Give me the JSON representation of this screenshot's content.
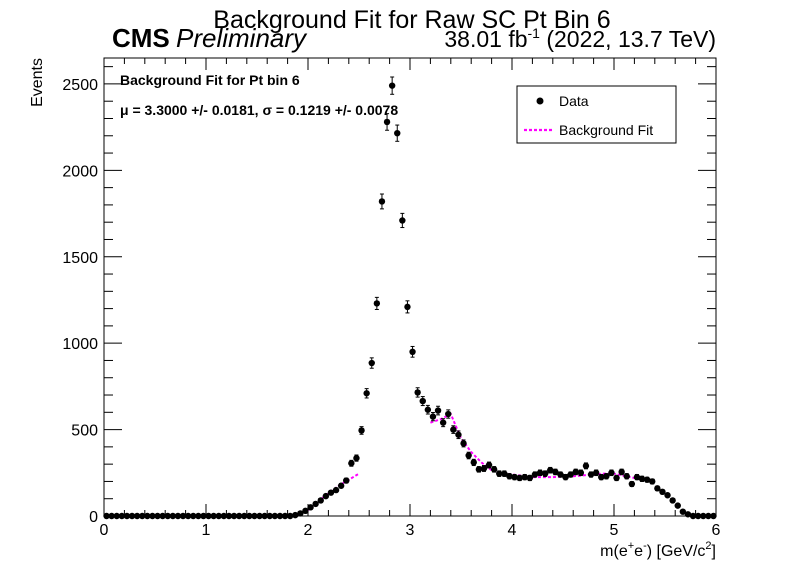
{
  "chart_data": {
    "type": "scatter",
    "title": "Background Fit for Raw SC Pt Bin 6",
    "cms_label": "CMS",
    "cms_sublabel": "Preliminary",
    "lumi_label": {
      "value": "38.01 fb",
      "exponent": "-1",
      "rest": " (2022, 13.7 TeV)"
    },
    "annotations": [
      "Background Fit for Pt bin 6",
      "μ = 3.3000 +/- 0.0181, σ = 0.1219 +/- 0.0078"
    ],
    "xlabel": {
      "base": "m(e",
      "sup1": "+",
      "mid": "e",
      "sup2": "-",
      "end": ") [GeV/c",
      "sup3": "2",
      "close": "]"
    },
    "ylabel": "Events",
    "xlim": [
      0,
      6
    ],
    "ylim": [
      0,
      2650
    ],
    "xticks": [
      0,
      1,
      2,
      3,
      4,
      5,
      6
    ],
    "yticks": [
      0,
      500,
      1000,
      1500,
      2000,
      2500
    ],
    "grid": false,
    "legend_position": "top-right",
    "series": [
      {
        "name": "Data",
        "style": "markers",
        "color": "#000000",
        "x": [
          0.025,
          0.075,
          0.125,
          0.175,
          0.225,
          0.275,
          0.325,
          0.375,
          0.425,
          0.475,
          0.525,
          0.575,
          0.625,
          0.675,
          0.725,
          0.775,
          0.825,
          0.875,
          0.925,
          0.975,
          1.025,
          1.075,
          1.125,
          1.175,
          1.225,
          1.275,
          1.325,
          1.375,
          1.425,
          1.475,
          1.525,
          1.575,
          1.625,
          1.675,
          1.725,
          1.775,
          1.825,
          1.875,
          1.925,
          1.975,
          2.025,
          2.075,
          2.125,
          2.175,
          2.225,
          2.275,
          2.325,
          2.375,
          2.425,
          2.475,
          2.525,
          2.575,
          2.625,
          2.675,
          2.725,
          2.775,
          2.825,
          2.875,
          2.925,
          2.975,
          3.025,
          3.075,
          3.125,
          3.175,
          3.225,
          3.275,
          3.325,
          3.375,
          3.425,
          3.475,
          3.525,
          3.575,
          3.625,
          3.675,
          3.725,
          3.775,
          3.825,
          3.875,
          3.925,
          3.975,
          4.025,
          4.075,
          4.125,
          4.175,
          4.225,
          4.275,
          4.325,
          4.375,
          4.425,
          4.475,
          4.525,
          4.575,
          4.625,
          4.675,
          4.725,
          4.775,
          4.825,
          4.875,
          4.925,
          4.975,
          5.025,
          5.075,
          5.125,
          5.175,
          5.225,
          5.275,
          5.325,
          5.375,
          5.425,
          5.475,
          5.525,
          5.575,
          5.625,
          5.675,
          5.725,
          5.775,
          5.825,
          5.875,
          5.925,
          5.975
        ],
        "y": [
          0,
          0,
          0,
          0,
          0,
          0,
          0,
          0,
          0,
          0,
          0,
          0,
          0,
          0,
          0,
          0,
          0,
          0,
          0,
          0,
          0,
          0,
          0,
          0,
          0,
          0,
          0,
          0,
          0,
          0,
          0,
          0,
          0,
          0,
          0,
          0,
          0,
          5,
          15,
          30,
          50,
          70,
          90,
          115,
          135,
          150,
          175,
          205,
          305,
          335,
          495,
          710,
          885,
          1230,
          1820,
          2280,
          2490,
          2215,
          1710,
          1210,
          950,
          715,
          665,
          615,
          575,
          610,
          540,
          590,
          500,
          470,
          420,
          350,
          310,
          270,
          275,
          295,
          270,
          245,
          245,
          230,
          225,
          220,
          225,
          220,
          240,
          250,
          245,
          265,
          255,
          240,
          225,
          240,
          255,
          250,
          290,
          240,
          250,
          225,
          230,
          250,
          220,
          255,
          230,
          185,
          225,
          215,
          210,
          200,
          160,
          140,
          120,
          90,
          60,
          25,
          10,
          0,
          0,
          0,
          0,
          0
        ],
        "yerr": [
          0,
          0,
          0,
          0,
          0,
          0,
          0,
          0,
          0,
          0,
          0,
          0,
          0,
          0,
          0,
          0,
          0,
          0,
          0,
          0,
          0,
          0,
          0,
          0,
          0,
          0,
          0,
          0,
          0,
          0,
          0,
          0,
          0,
          0,
          0,
          0,
          0,
          2,
          4,
          5,
          7,
          8,
          9,
          11,
          12,
          12,
          13,
          14,
          17,
          18,
          22,
          27,
          30,
          35,
          43,
          48,
          50,
          47,
          41,
          35,
          31,
          27,
          26,
          25,
          24,
          25,
          23,
          24,
          22,
          22,
          20,
          19,
          18,
          16,
          17,
          17,
          16,
          16,
          16,
          15,
          15,
          15,
          15,
          15,
          15,
          16,
          16,
          16,
          16,
          15,
          15,
          15,
          16,
          16,
          17,
          15,
          16,
          15,
          15,
          16,
          15,
          16,
          15,
          14,
          15,
          15,
          14,
          14,
          13,
          12,
          11,
          9,
          8,
          5,
          3,
          0,
          0,
          0,
          0,
          0
        ]
      },
      {
        "name": "Background Fit",
        "style": "dashed-line",
        "color": "#ff00ff",
        "segments": [
          {
            "x": [
              1.9,
              2.0,
              2.1,
              2.2,
              2.3,
              2.4,
              2.5
            ],
            "y": [
              5,
              35,
              85,
              130,
              175,
              210,
              245
            ]
          },
          {
            "x": [
              3.2,
              3.3,
              3.4,
              3.5,
              3.6,
              3.7,
              3.8,
              3.9,
              4.0,
              4.2,
              4.4,
              4.6,
              4.8,
              4.9,
              5.0,
              5.2
            ],
            "y": [
              540,
              560,
              590,
              450,
              370,
              310,
              265,
              250,
              240,
              225,
              225,
              230,
              240,
              245,
              245,
              220
            ]
          }
        ]
      }
    ]
  }
}
